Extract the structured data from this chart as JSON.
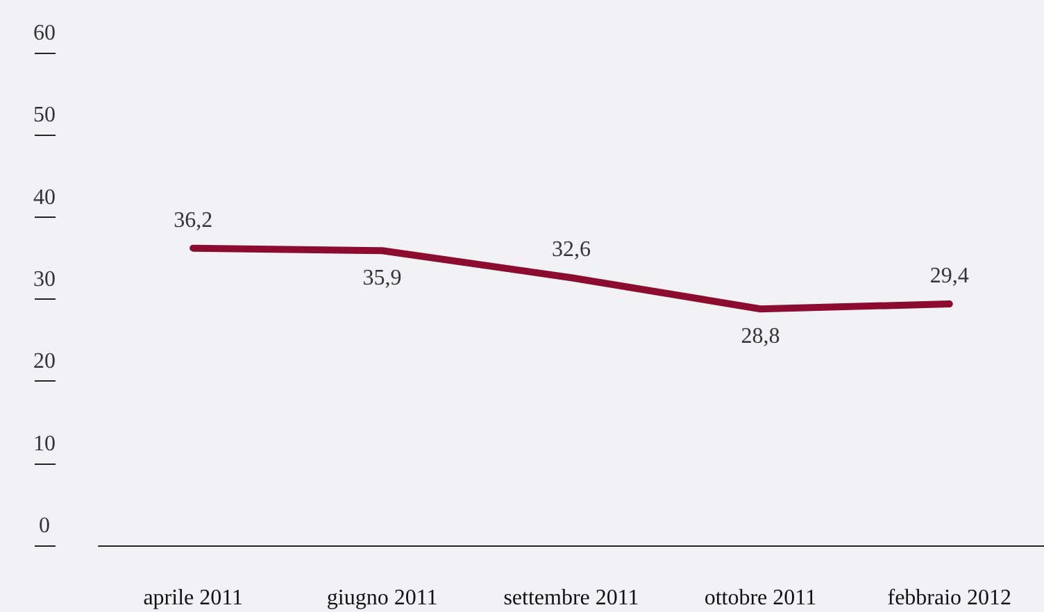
{
  "chart_data": {
    "type": "line",
    "categories": [
      "aprile 2011",
      "giugno 2011",
      "settembre 2011",
      "ottobre 2011",
      "febbraio 2012"
    ],
    "series": [
      {
        "color": "#8c0c30",
        "values": [
          36.2,
          35.9,
          32.6,
          28.8,
          29.4
        ],
        "value_labels": [
          "36,2",
          "35,9",
          "32,6",
          "28,8",
          "29,4"
        ]
      }
    ],
    "ylim": [
      0,
      60
    ],
    "yticks": [
      0,
      10,
      20,
      30,
      40,
      50,
      60
    ],
    "grid": false,
    "marker": "none",
    "line_style": "solid"
  }
}
